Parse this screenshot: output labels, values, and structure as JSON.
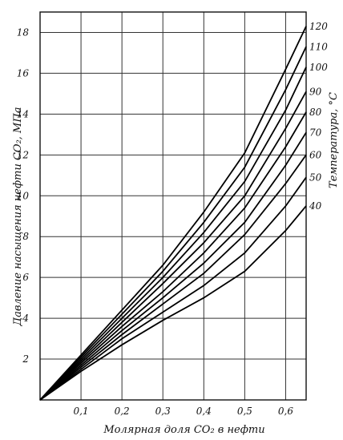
{
  "chart_data": {
    "type": "line",
    "title": "",
    "xlabel": "Молярная доля CO₂ в нефти",
    "ylabel": "Давление насыщения нефти CO₂, МПа",
    "right_axis_label": "Температура, °C",
    "xlim": [
      0.0,
      0.65
    ],
    "ylim": [
      0,
      19
    ],
    "x_ticks": [
      "0,1",
      "0,2",
      "0,3",
      "0,4",
      "0,5",
      "0,6"
    ],
    "y_ticks": [
      "2",
      "4",
      "6",
      "8",
      "10",
      "12",
      "14",
      "16",
      "18"
    ],
    "grid": true,
    "series": [
      {
        "name": "40",
        "x": [
          0.0,
          0.1,
          0.2,
          0.3,
          0.4,
          0.5,
          0.6,
          0.65
        ],
        "y": [
          0.0,
          1.4,
          2.7,
          3.9,
          5.0,
          6.3,
          8.3,
          9.5
        ]
      },
      {
        "name": "50",
        "x": [
          0.0,
          0.1,
          0.2,
          0.3,
          0.4,
          0.5,
          0.6,
          0.65
        ],
        "y": [
          0.0,
          1.5,
          3.0,
          4.3,
          5.6,
          7.2,
          9.5,
          10.9
        ]
      },
      {
        "name": "60",
        "x": [
          0.0,
          0.1,
          0.2,
          0.3,
          0.4,
          0.5,
          0.6,
          0.65
        ],
        "y": [
          0.0,
          1.6,
          3.2,
          4.7,
          6.2,
          8.1,
          10.6,
          12.0
        ]
      },
      {
        "name": "70",
        "x": [
          0.0,
          0.1,
          0.2,
          0.3,
          0.4,
          0.5,
          0.6,
          0.65
        ],
        "y": [
          0.0,
          1.7,
          3.4,
          5.0,
          6.7,
          8.7,
          11.5,
          13.1
        ]
      },
      {
        "name": "80",
        "x": [
          0.0,
          0.1,
          0.2,
          0.3,
          0.4,
          0.5,
          0.6,
          0.65
        ],
        "y": [
          0.0,
          1.8,
          3.6,
          5.3,
          7.2,
          9.4,
          12.4,
          14.1
        ]
      },
      {
        "name": "90",
        "x": [
          0.0,
          0.1,
          0.2,
          0.3,
          0.4,
          0.5,
          0.6,
          0.65
        ],
        "y": [
          0.0,
          1.9,
          3.8,
          5.7,
          7.7,
          10.0,
          13.3,
          15.1
        ]
      },
      {
        "name": "100",
        "x": [
          0.0,
          0.1,
          0.2,
          0.3,
          0.4,
          0.5,
          0.6,
          0.65
        ],
        "y": [
          0.0,
          2.0,
          4.0,
          6.0,
          8.2,
          10.7,
          14.2,
          16.3
        ]
      },
      {
        "name": "110",
        "x": [
          0.0,
          0.1,
          0.2,
          0.3,
          0.4,
          0.5,
          0.6,
          0.65
        ],
        "y": [
          0.0,
          2.1,
          4.2,
          6.3,
          8.7,
          11.4,
          15.2,
          17.3
        ]
      },
      {
        "name": "120",
        "x": [
          0.0,
          0.1,
          0.2,
          0.3,
          0.4,
          0.5,
          0.6,
          0.65
        ],
        "y": [
          0.0,
          2.2,
          4.4,
          6.6,
          9.2,
          12.1,
          16.2,
          18.3
        ]
      }
    ]
  }
}
